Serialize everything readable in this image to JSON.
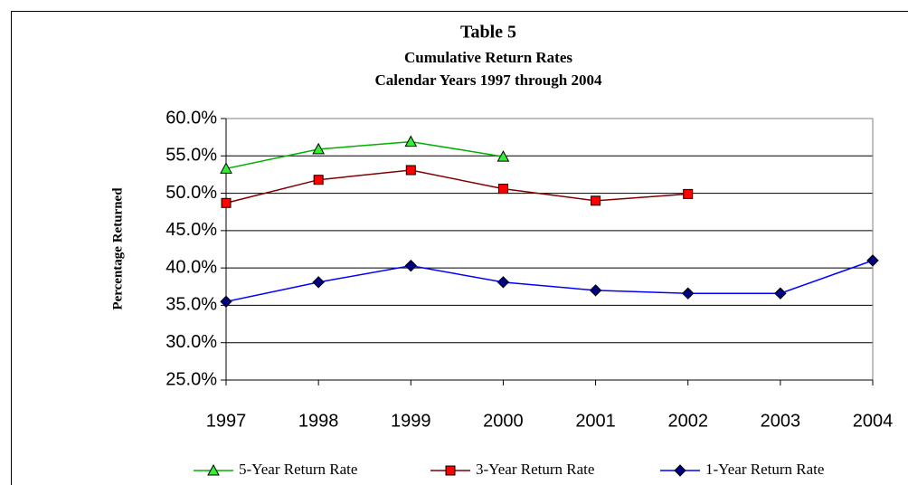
{
  "chart_data": {
    "type": "line",
    "title": "Table 5",
    "subtitle": [
      "Cumulative Return Rates",
      "Calendar Years 1997 through 2004"
    ],
    "y_label": "Percentage Returned",
    "categories": [
      "1997",
      "1998",
      "1999",
      "2000",
      "2001",
      "2002",
      "2003",
      "2004"
    ],
    "series": [
      {
        "name": "5-Year Return Rate",
        "color": "#00b000",
        "marker": "triangle",
        "marker_color": "#33ee33",
        "values": [
          53.3,
          55.9,
          56.9,
          54.9,
          null,
          null,
          null,
          null
        ]
      },
      {
        "name": "3-Year Return Rate",
        "color": "#800000",
        "marker": "square",
        "marker_color": "#ff0000",
        "values": [
          48.7,
          51.8,
          53.1,
          50.6,
          49.0,
          49.9,
          null,
          null
        ]
      },
      {
        "name": "1-Year Return Rate",
        "color": "#0000ff",
        "marker": "diamond",
        "marker_color": "#000080",
        "values": [
          35.5,
          38.1,
          40.3,
          38.1,
          37.0,
          36.6,
          36.6,
          41.0
        ]
      }
    ],
    "ylim": [
      25,
      60
    ],
    "yticks": [
      {
        "value": 25,
        "label": "25.0%"
      },
      {
        "value": 30,
        "label": "30.0%"
      },
      {
        "value": 35,
        "label": "35.0%"
      },
      {
        "value": 40,
        "label": "40.0%"
      },
      {
        "value": 45,
        "label": "45.0%"
      },
      {
        "value": 50,
        "label": "50.0%"
      },
      {
        "value": 55,
        "label": "55.0%"
      },
      {
        "value": 60,
        "label": "60.0%"
      }
    ],
    "grid": true,
    "legend": "bottom"
  }
}
